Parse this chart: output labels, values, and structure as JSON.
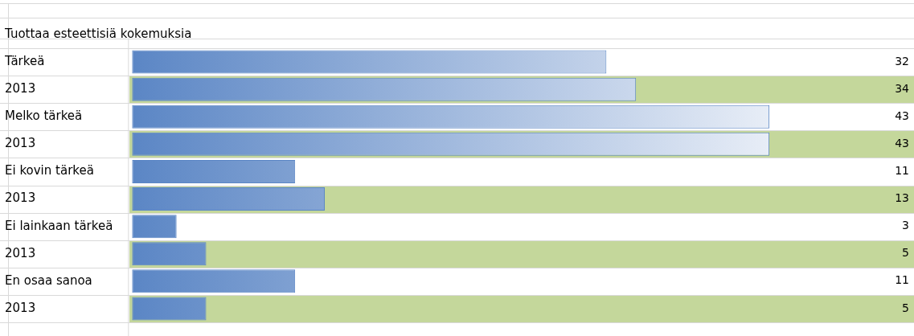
{
  "chart_data": {
    "type": "bar",
    "orientation": "horizontal",
    "title": "Tuottaa esteettisiä kokemuksia",
    "categories": [
      "Tärkeä",
      "2013",
      "Melko tärkeä",
      "2013",
      "Ei kovin tärkeä",
      "2013",
      "Ei lainkaan tärkeä",
      "2013",
      "En osaa sanoa",
      "2013"
    ],
    "values": [
      32,
      34,
      43,
      43,
      11,
      13,
      3,
      5,
      11,
      5
    ],
    "color": "#5b86c5",
    "data_labels": true,
    "tick_labels": "y",
    "legend": false
  }
}
